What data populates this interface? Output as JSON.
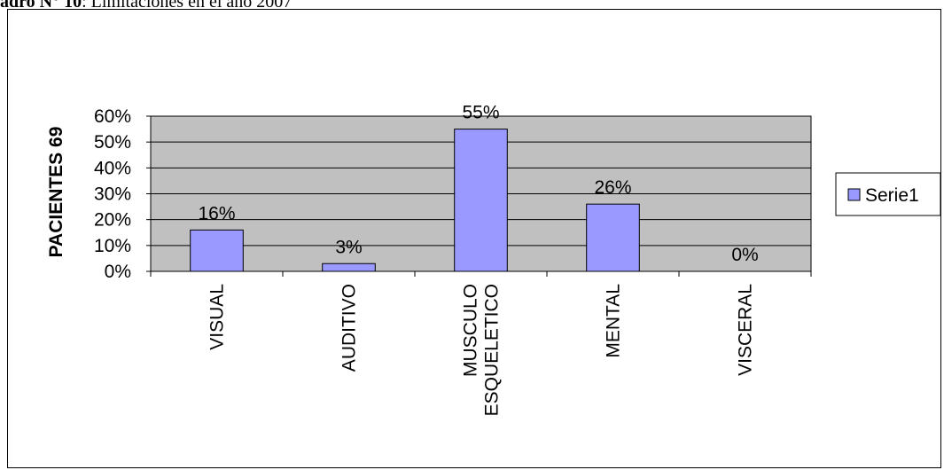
{
  "caption": {
    "prefix": "adro N° 10",
    "text": ": Limitaciones en el año 2007"
  },
  "chart_data": {
    "type": "bar",
    "categories": [
      "VISUAL",
      "AUDITIVO",
      "MUSCULO ESQUELETICO",
      "MENTAL",
      "VISCERAL"
    ],
    "category_lines": [
      [
        "VISUAL"
      ],
      [
        "AUDITIVO"
      ],
      [
        "MUSCULO",
        "ESQUELETICO"
      ],
      [
        "MENTAL"
      ],
      [
        "VISCERAL"
      ]
    ],
    "series": [
      {
        "name": "Serie1",
        "values": [
          16,
          3,
          55,
          26,
          0
        ],
        "labels": [
          "16%",
          "3%",
          "55%",
          "26%",
          "0%"
        ]
      }
    ],
    "ylabel": "PACIENTES 69",
    "ylim": [
      0,
      60
    ],
    "yticks": [
      0,
      10,
      20,
      30,
      40,
      50,
      60
    ],
    "ytick_labels": [
      "0%",
      "10%",
      "20%",
      "30%",
      "40%",
      "50%",
      "60%"
    ],
    "grid": true,
    "legend_position": "right",
    "colors": {
      "bar": "#9999FF",
      "plot_bg": "#C0C0C0",
      "border": "#000000"
    }
  }
}
